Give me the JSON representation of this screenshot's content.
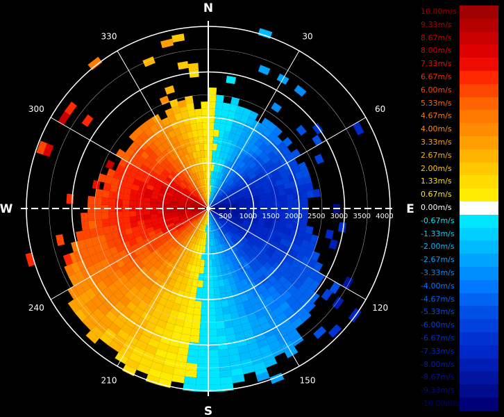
{
  "chart_data": {
    "type": "heatmap",
    "projection": "polar",
    "description_of_field": "Doppler radial wind velocity, PPI scan",
    "cardinal_labels": {
      "north": "N",
      "east": "E",
      "south": "S",
      "west": "W"
    },
    "azimuth_labels": [
      {
        "deg": 30,
        "text": "30"
      },
      {
        "deg": 60,
        "text": "60"
      },
      {
        "deg": 120,
        "text": "120"
      },
      {
        "deg": 150,
        "text": "150"
      },
      {
        "deg": 210,
        "text": "210"
      },
      {
        "deg": 240,
        "text": "240"
      },
      {
        "deg": 300,
        "text": "300"
      },
      {
        "deg": 330,
        "text": "330"
      }
    ],
    "range_labels": [
      "500",
      "1000",
      "1500",
      "2000",
      "2500",
      "3000",
      "3500",
      "4000"
    ],
    "range_max": 4000,
    "colorbar": {
      "labels": [
        "10.00m/s",
        "9.33m/s",
        "8.67m/s",
        "8.00m/s",
        "7.33m/s",
        "6.67m/s",
        "6.00m/s",
        "5.33m/s",
        "4.67m/s",
        "4.00m/s",
        "3.33m/s",
        "2.67m/s",
        "2.00m/s",
        "1.33m/s",
        "0.67m/s",
        "0.00m/s",
        "-0.67m/s",
        "-1.33m/s",
        "-2.00m/s",
        "-2.67m/s",
        "-3.33m/s",
        "-4.00m/s",
        "-4.67m/s",
        "-5.33m/s",
        "-6.00m/s",
        "-6.67m/s",
        "-7.33m/s",
        "-8.00m/s",
        "-8.67m/s",
        "-9.33m/s",
        "-10.00m/s"
      ],
      "colors": [
        "#a00000",
        "#b40000",
        "#c80000",
        "#dc0000",
        "#f00a00",
        "#ff2800",
        "#ff4600",
        "#ff6400",
        "#ff7800",
        "#ff8c00",
        "#ffa000",
        "#ffb400",
        "#ffc800",
        "#ffdc00",
        "#ffec00",
        "#ffffff",
        "#00e6ff",
        "#00d0ff",
        "#00baff",
        "#00a4ff",
        "#008eff",
        "#0078ff",
        "#0064f0",
        "#0050e6",
        "#0040dc",
        "#0032d2",
        "#0028c8",
        "#001eb4",
        "#0014a0",
        "#000c8c",
        "#000078"
      ]
    },
    "field_summary": {
      "approaching_sector_deg": [
        10,
        170
      ],
      "receding_sector_deg": [
        190,
        350
      ],
      "peak_speed_ms": 9.3
    }
  }
}
